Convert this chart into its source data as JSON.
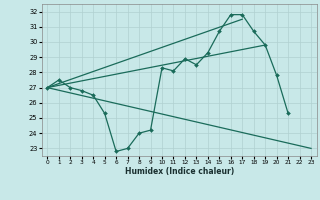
{
  "xlabel": "Humidex (Indice chaleur)",
  "bg_color": "#c8e8e8",
  "grid_color": "#b0d0d0",
  "line_color": "#1a6b5a",
  "xlim": [
    -0.5,
    23.5
  ],
  "ylim": [
    22.5,
    32.5
  ],
  "xticks": [
    0,
    1,
    2,
    3,
    4,
    5,
    6,
    7,
    8,
    9,
    10,
    11,
    12,
    13,
    14,
    15,
    16,
    17,
    18,
    19,
    20,
    21,
    22,
    23
  ],
  "yticks": [
    23,
    24,
    25,
    26,
    27,
    28,
    29,
    30,
    31,
    32
  ],
  "curve1_x": [
    0,
    1,
    2,
    3,
    4,
    5,
    6,
    7,
    8,
    9,
    10,
    11,
    12,
    13,
    14,
    15,
    16,
    17,
    18,
    19,
    20,
    21
  ],
  "curve1_y": [
    27.0,
    27.5,
    27.0,
    26.8,
    26.5,
    25.3,
    22.8,
    23.0,
    24.0,
    24.2,
    28.3,
    28.1,
    28.9,
    28.5,
    29.3,
    30.7,
    31.8,
    31.8,
    30.7,
    29.8,
    27.8,
    25.3
  ],
  "line1_x": [
    0,
    23
  ],
  "line1_y": [
    27.0,
    23.0
  ],
  "line2_x": [
    0,
    17
  ],
  "line2_y": [
    27.0,
    31.5
  ],
  "line3_x": [
    0,
    19
  ],
  "line3_y": [
    27.0,
    29.8
  ]
}
